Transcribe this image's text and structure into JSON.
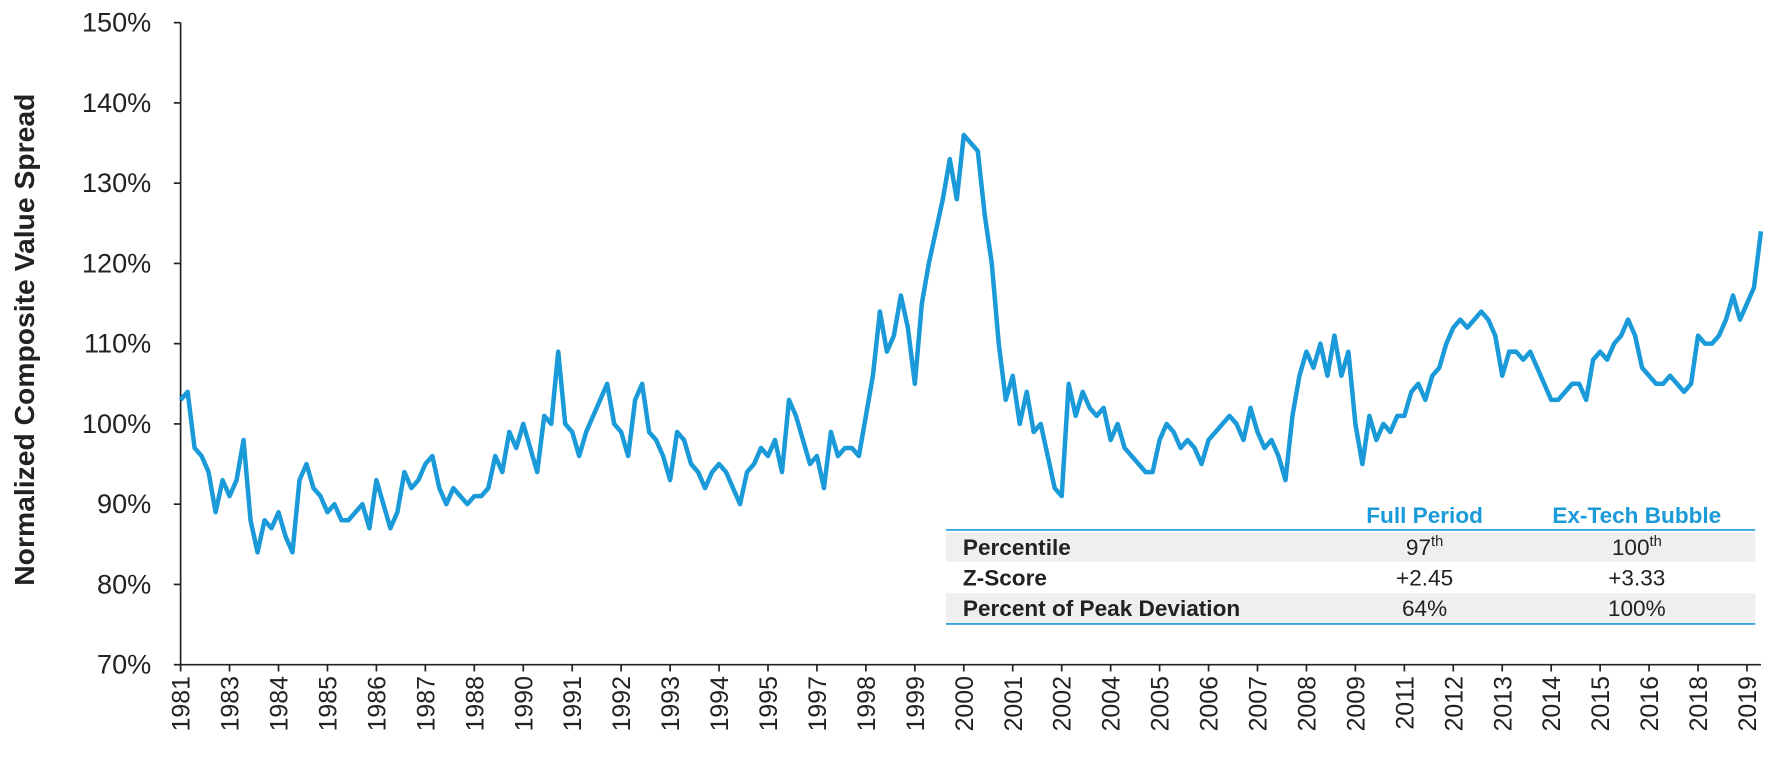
{
  "chart_data": {
    "type": "line",
    "y_label": "Normalized Composite Value Spread",
    "categories": [
      "1981",
      null,
      null,
      null,
      null,
      null,
      null,
      "1983",
      null,
      null,
      null,
      null,
      null,
      null,
      "1984",
      null,
      null,
      null,
      null,
      null,
      null,
      "1985",
      null,
      null,
      null,
      null,
      null,
      null,
      "1986",
      null,
      null,
      null,
      null,
      null,
      null,
      "1987",
      null,
      null,
      null,
      null,
      null,
      null,
      "1988",
      null,
      null,
      null,
      null,
      null,
      null,
      "1990",
      null,
      null,
      null,
      null,
      null,
      null,
      "1991",
      null,
      null,
      null,
      null,
      null,
      null,
      "1992",
      null,
      null,
      null,
      null,
      null,
      null,
      "1993",
      null,
      null,
      null,
      null,
      null,
      null,
      "1994",
      null,
      null,
      null,
      null,
      null,
      null,
      "1995",
      null,
      null,
      null,
      null,
      null,
      null,
      "1997",
      null,
      null,
      null,
      null,
      null,
      null,
      "1998",
      null,
      null,
      null,
      null,
      null,
      null,
      "1999",
      null,
      null,
      null,
      null,
      null,
      null,
      "2000",
      null,
      null,
      null,
      null,
      null,
      null,
      "2001",
      null,
      null,
      null,
      null,
      null,
      null,
      "2002",
      null,
      null,
      null,
      null,
      null,
      null,
      "2004",
      null,
      null,
      null,
      null,
      null,
      null,
      "2005",
      null,
      null,
      null,
      null,
      null,
      null,
      "2006",
      null,
      null,
      null,
      null,
      null,
      null,
      "2007",
      null,
      null,
      null,
      null,
      null,
      null,
      "2008",
      null,
      null,
      null,
      null,
      null,
      null,
      "2009",
      null,
      null,
      null,
      null,
      null,
      null,
      "2011",
      null,
      null,
      null,
      null,
      null,
      null,
      "2012",
      null,
      null,
      null,
      null,
      null,
      null,
      "2013",
      null,
      null,
      null,
      null,
      null,
      null,
      "2014",
      null,
      null,
      null,
      null,
      null,
      null,
      "2015",
      null,
      null,
      null,
      null,
      null,
      null,
      "2016",
      null,
      null,
      null,
      null,
      null,
      null,
      "2018",
      null,
      null,
      null,
      null,
      null,
      null,
      "2019",
      null,
      null
    ],
    "values": [
      103,
      104,
      97,
      96,
      94,
      89,
      93,
      91,
      93,
      98,
      88,
      84,
      88,
      87,
      89,
      86,
      84,
      93,
      95,
      92,
      91,
      89,
      90,
      88,
      88,
      89,
      90,
      87,
      93,
      90,
      87,
      89,
      94,
      92,
      93,
      95,
      96,
      92,
      90,
      92,
      91,
      90,
      91,
      91,
      92,
      96,
      94,
      99,
      97,
      100,
      97,
      94,
      101,
      100,
      109,
      100,
      99,
      96,
      99,
      101,
      103,
      105,
      100,
      99,
      96,
      103,
      105,
      99,
      98,
      96,
      93,
      99,
      98,
      95,
      94,
      92,
      94,
      95,
      94,
      92,
      90,
      94,
      95,
      97,
      96,
      98,
      94,
      103,
      101,
      98,
      95,
      96,
      92,
      99,
      96,
      97,
      97,
      96,
      101,
      106,
      114,
      109,
      111,
      116,
      112,
      105,
      115,
      120,
      124,
      128,
      133,
      128,
      136,
      135,
      134,
      126,
      120,
      110,
      103,
      106,
      100,
      104,
      99,
      100,
      96,
      92,
      91,
      105,
      101,
      104,
      102,
      101,
      102,
      98,
      100,
      97,
      96,
      95,
      94,
      94,
      98,
      100,
      99,
      97,
      98,
      97,
      95,
      98,
      99,
      100,
      101,
      100,
      98,
      102,
      99,
      97,
      98,
      96,
      93,
      101,
      106,
      109,
      107,
      110,
      106,
      111,
      106,
      109,
      100,
      95,
      101,
      98,
      100,
      99,
      101,
      101,
      104,
      105,
      103,
      106,
      107,
      110,
      112,
      113,
      112,
      113,
      114,
      113,
      111,
      106,
      109,
      109,
      108,
      109,
      107,
      105,
      103,
      103,
      104,
      105,
      105,
      103,
      108,
      109,
      108,
      110,
      111,
      113,
      111,
      107,
      106,
      105,
      105,
      106,
      105,
      104,
      105,
      111,
      110,
      110,
      111,
      113,
      116,
      113,
      115,
      117,
      124
    ],
    "color": "#1a9ad9",
    "ylim": [
      70,
      150
    ],
    "yticks": [
      {
        "value": 70,
        "label": "70%"
      },
      {
        "value": 80,
        "label": "80%"
      },
      {
        "value": 90,
        "label": "90%"
      },
      {
        "value": 100,
        "label": "100%"
      },
      {
        "value": 110,
        "label": "110%"
      },
      {
        "value": 120,
        "label": "120%"
      },
      {
        "value": 130,
        "label": "130%"
      },
      {
        "value": 140,
        "label": "140%"
      },
      {
        "value": 150,
        "label": "150%"
      }
    ],
    "grid": false,
    "table": {
      "columns": [
        "Full Period",
        "Ex-Tech Bubble"
      ],
      "rows": [
        {
          "label": "Percentile",
          "cells": [
            [
              "97",
              "th"
            ],
            [
              "100",
              "th"
            ]
          ]
        },
        {
          "label": "Z-Score",
          "cells": [
            [
              "+2.45"
            ],
            [
              "+3.33"
            ]
          ]
        },
        {
          "label": "Percent of Peak Deviation",
          "cells": [
            [
              "64%"
            ],
            [
              "100%"
            ]
          ]
        }
      ]
    }
  }
}
